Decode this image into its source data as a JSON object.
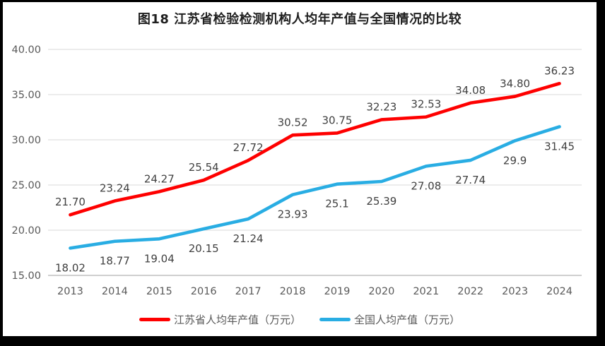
{
  "chart_data": {
    "type": "line",
    "title": "图18  江苏省检验检测机构人均年产值与全国情况的比较",
    "categories": [
      "2013",
      "2014",
      "2015",
      "2016",
      "2017",
      "2018",
      "2019",
      "2020",
      "2021",
      "2022",
      "2023",
      "2024"
    ],
    "series": [
      {
        "name": "江苏省人均年产值（万元）",
        "color": "#fe0000",
        "label_position": "above",
        "values": [
          21.7,
          23.24,
          24.27,
          25.54,
          27.72,
          30.52,
          30.75,
          32.23,
          32.53,
          34.08,
          34.8,
          36.23
        ],
        "labels": [
          "21.70",
          "23.24",
          "24.27",
          "25.54",
          "27.72",
          "30.52",
          "30.75",
          "32.23",
          "32.53",
          "34.08",
          "34.80",
          "36.23"
        ]
      },
      {
        "name": "全国人均产值（万元）",
        "color": "#29ade3",
        "label_position": "below",
        "values": [
          18.02,
          18.77,
          19.04,
          20.15,
          21.24,
          23.93,
          25.1,
          25.39,
          27.08,
          27.74,
          29.9,
          31.45
        ],
        "labels": [
          "18.02",
          "18.77",
          "19.04",
          "20.15",
          "21.24",
          "23.93",
          "25.1",
          "25.39",
          "27.08",
          "27.74",
          "29.9",
          "31.45"
        ]
      }
    ],
    "ylim": [
      15,
      40
    ],
    "yticks": [
      {
        "value": 15,
        "label": "15.00"
      },
      {
        "value": 20,
        "label": "20.00"
      },
      {
        "value": 25,
        "label": "25.00"
      },
      {
        "value": 30,
        "label": "30.00"
      },
      {
        "value": 35,
        "label": "35.00"
      },
      {
        "value": 40,
        "label": "40.00"
      }
    ],
    "grid": "horizontal",
    "legend_position": "bottom",
    "colors": {
      "grid": "#d9d9d9",
      "axis": "#bfbfbf",
      "tick_text": "#595959",
      "label_text": "#404040",
      "frame_border": "#000000"
    }
  }
}
